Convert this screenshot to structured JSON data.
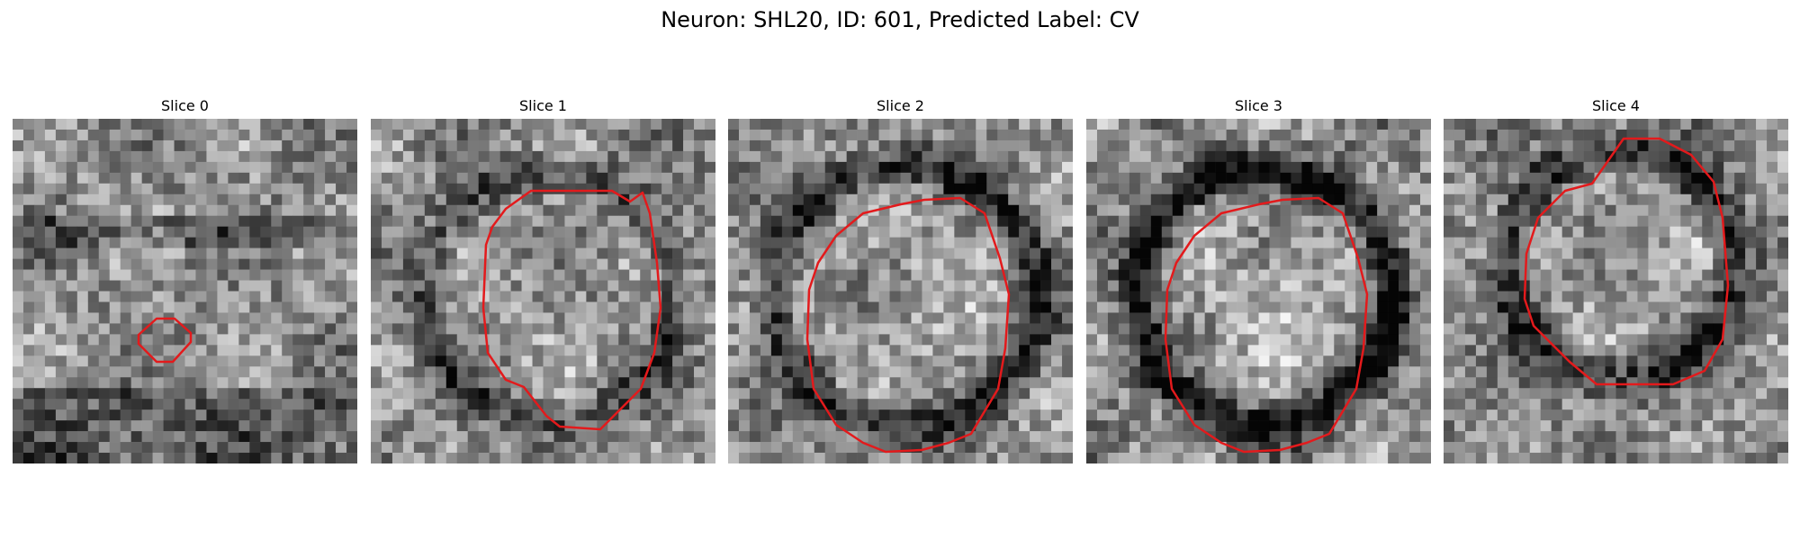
{
  "figure": {
    "title": "Neuron: SHL20, ID: 601, Predicted Label: CV"
  },
  "colors": {
    "contour": "#e31a1c",
    "background": "#ffffff",
    "colormap": "gray"
  },
  "panels": [
    {
      "title": "Slice 0",
      "seed": 11,
      "ring_radius": 0.0,
      "ring_strength": 0.0,
      "contour": "small"
    },
    {
      "title": "Slice 1",
      "seed": 23,
      "ring_radius": 0.36,
      "ring_strength": 0.35,
      "contour": "medium"
    },
    {
      "title": "Slice 2",
      "seed": 37,
      "ring_radius": 0.38,
      "ring_strength": 0.55,
      "contour": "large"
    },
    {
      "title": "Slice 3",
      "seed": 41,
      "ring_radius": 0.37,
      "ring_strength": 0.75,
      "contour": "large"
    },
    {
      "title": "Slice 4",
      "seed": 53,
      "ring_radius": 0.33,
      "ring_strength": 0.55,
      "contour": "tall"
    }
  ]
}
